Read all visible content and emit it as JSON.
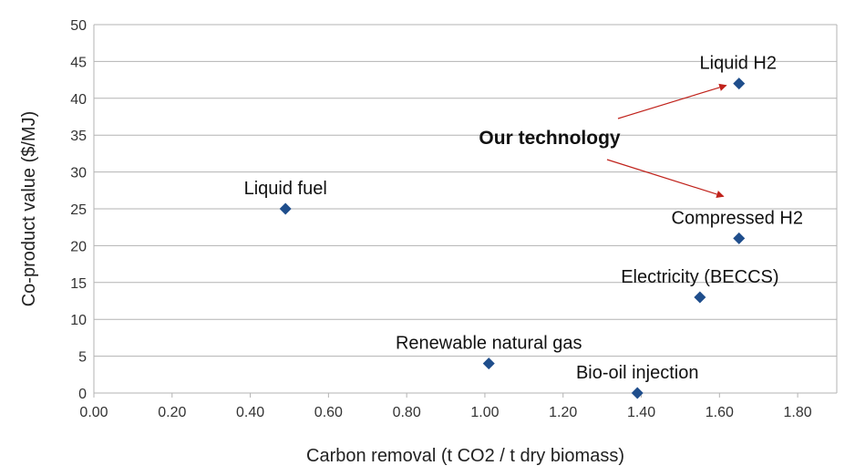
{
  "chart_data": {
    "type": "scatter",
    "title": "",
    "xlabel": "Carbon removal (t CO2 / t dry biomass)",
    "ylabel": "Co-product value ($/MJ)",
    "xlim": [
      0,
      1.9
    ],
    "ylim": [
      0,
      50
    ],
    "x_ticks": [
      "0.00",
      "0.20",
      "0.40",
      "0.60",
      "0.80",
      "1.00",
      "1.20",
      "1.40",
      "1.60",
      "1.80"
    ],
    "y_ticks": [
      "0",
      "5",
      "10",
      "15",
      "20",
      "25",
      "30",
      "35",
      "40",
      "45",
      "50"
    ],
    "grid": "horizontal",
    "marker_color": "#1f4e8c",
    "annotation_color": "#c0221b",
    "points": [
      {
        "label": "Liquid fuel",
        "x": 0.49,
        "y": 25
      },
      {
        "label": "Renewable natural gas",
        "x": 1.01,
        "y": 4
      },
      {
        "label": "Bio-oil injection",
        "x": 1.39,
        "y": 0
      },
      {
        "label": "Electricity (BECCS)",
        "x": 1.55,
        "y": 13
      },
      {
        "label": "Compressed H2",
        "x": 1.65,
        "y": 21
      },
      {
        "label": "Liquid H2",
        "x": 1.65,
        "y": 42
      }
    ],
    "annotation": {
      "text": "Our technology",
      "targets": [
        "Liquid H2",
        "Compressed H2"
      ]
    }
  }
}
